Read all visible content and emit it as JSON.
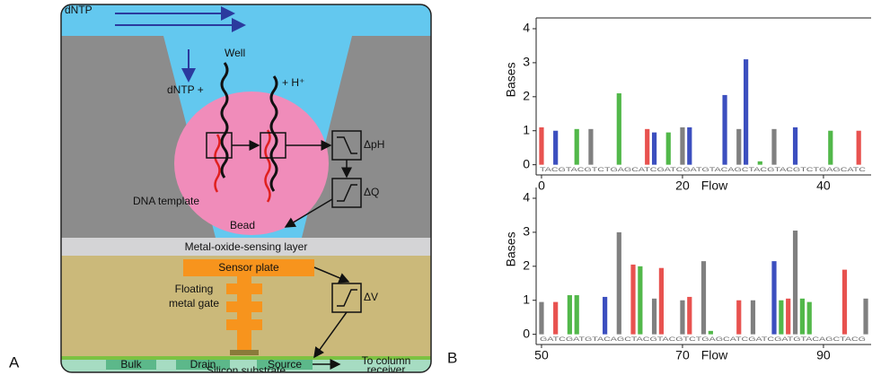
{
  "panels": {
    "a": "A",
    "b": "B"
  },
  "diagram": {
    "labels": {
      "dntp_top": "dNTP",
      "well": "Well",
      "dntp_plus": "dNTP +",
      "h_plus": "+ H⁺",
      "delta_ph": "ΔpH",
      "delta_q": "ΔQ",
      "dna_template": "DNA template",
      "bead": "Bead",
      "sensing_layer": "Metal-oxide-sensing layer",
      "sensor_plate": "Sensor plate",
      "floating": "Floating",
      "metal_gate": "metal gate",
      "delta_v": "ΔV",
      "bulk": "Bulk",
      "drain": "Drain",
      "source": "Source",
      "to_column": "To column",
      "receiver": "receiver",
      "substrate": "Silicon substrate"
    }
  },
  "chart_data": [
    {
      "type": "bar",
      "ylabel": "Bases",
      "xlabel": "Flow",
      "x": [
        0,
        2,
        5,
        7,
        11,
        15,
        16,
        18,
        20,
        21,
        26,
        28,
        29,
        31,
        33,
        36,
        41,
        45
      ],
      "values": [
        1.1,
        1.0,
        1.05,
        1.05,
        2.1,
        1.05,
        0.95,
        0.95,
        1.1,
        1.1,
        2.05,
        1.05,
        3.1,
        0.1,
        1.05,
        1.1,
        1.0,
        1.0
      ],
      "colors": [
        "#e8524f",
        "#3c4fbf",
        "#52b84a",
        "#808080",
        "#52b84a",
        "#e8524f",
        "#3c4fbf",
        "#52b84a",
        "#808080",
        "#3c4fbf",
        "#3c4fbf",
        "#808080",
        "#3c4fbf",
        "#52b84a",
        "#808080",
        "#3c4fbf",
        "#52b84a",
        "#e8524f"
      ],
      "sequence": "TACGTACGTCTGAGCATCGATCGATGTACAGCTACGTACGTCTGAGCATC",
      "xlim": [
        -0.76,
        46.76
      ],
      "ylim": [
        -0.3,
        4
      ],
      "xticks": [
        0,
        20,
        40
      ],
      "yticks": [
        0,
        1,
        2,
        3,
        4
      ]
    },
    {
      "type": "bar",
      "ylabel": "Bases",
      "xlabel": "Flow",
      "x": [
        50,
        52,
        54,
        55,
        59,
        61,
        63,
        64,
        66,
        67,
        70,
        71,
        73,
        74,
        78,
        80,
        83,
        84,
        85,
        86,
        87,
        88,
        93,
        96
      ],
      "values": [
        0.95,
        0.95,
        1.15,
        1.15,
        1.1,
        3.0,
        2.05,
        2.0,
        1.05,
        1.95,
        1.0,
        1.1,
        2.15,
        0.1,
        1.0,
        1.0,
        2.15,
        1.0,
        1.05,
        3.05,
        1.05,
        0.95,
        1.9,
        1.05
      ],
      "colors": [
        "#808080",
        "#e8524f",
        "#52b84a",
        "#52b84a",
        "#3c4fbf",
        "#808080",
        "#e8524f",
        "#52b84a",
        "#808080",
        "#e8524f",
        "#808080",
        "#e8524f",
        "#808080",
        "#52b84a",
        "#e8524f",
        "#808080",
        "#3c4fbf",
        "#52b84a",
        "#e8524f",
        "#808080",
        "#52b84a",
        "#52b84a",
        "#e8524f",
        "#808080"
      ],
      "sequence": "GATCGATGTACAGCTACGTACGTCTGAGCATCGATCGATGTACAGCTACG",
      "xlim": [
        49.24,
        96.76
      ],
      "ylim": [
        -0.3,
        4
      ],
      "xticks": [
        50,
        70,
        90
      ],
      "yticks": [
        0,
        1,
        2,
        3,
        4
      ]
    }
  ]
}
